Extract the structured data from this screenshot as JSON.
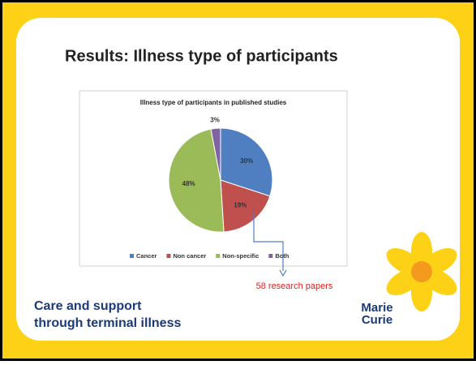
{
  "slide_title": "Results: Illness type of participants",
  "chart_data": {
    "type": "pie",
    "title": "Illness type of participants in published studies",
    "categories": [
      "Cancer",
      "Non cancer",
      "Non-specific",
      "Both"
    ],
    "values": [
      30,
      19,
      48,
      3
    ],
    "value_labels": [
      "30%",
      "19%",
      "48%",
      "3%"
    ],
    "colors": [
      "#4f7fc0",
      "#c0504d",
      "#9bbb59",
      "#8064a2"
    ],
    "legend": "bottom"
  },
  "annotation": "58 research papers",
  "tagline": [
    "Care and support",
    "through terminal illness"
  ],
  "logo": [
    "Marie",
    "Curie"
  ]
}
